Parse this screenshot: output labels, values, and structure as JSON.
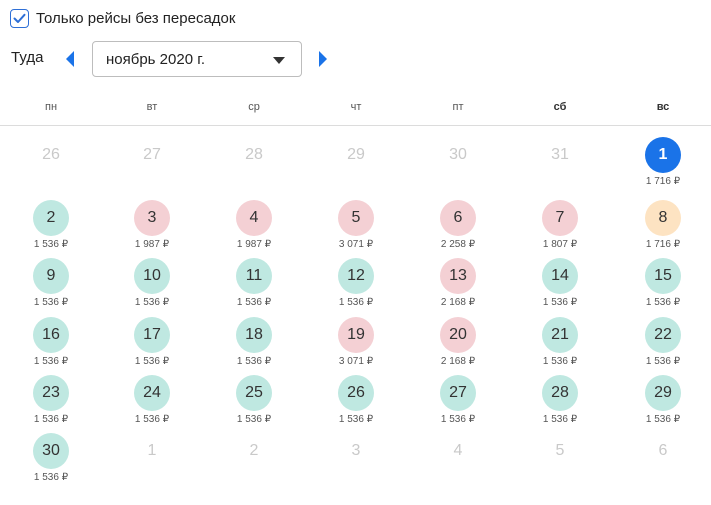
{
  "filter": {
    "label": "Только рейсы без пересадок",
    "checked": true
  },
  "nav": {
    "direction_label": "Туда",
    "month": "ноябрь 2020 г."
  },
  "weekdays": [
    "пн",
    "вт",
    "ср",
    "чт",
    "пт",
    "сб",
    "вс"
  ],
  "colors": {
    "accent": "#1a73e8",
    "cheap": "#bfe8e1",
    "expensive": "#f4d0d4",
    "medium": "#fde3c2"
  },
  "days": [
    {
      "n": "26",
      "p": "",
      "c": "none",
      "o": true
    },
    {
      "n": "27",
      "p": "",
      "c": "none",
      "o": true
    },
    {
      "n": "28",
      "p": "",
      "c": "none",
      "o": true
    },
    {
      "n": "29",
      "p": "",
      "c": "none",
      "o": true
    },
    {
      "n": "30",
      "p": "",
      "c": "none",
      "o": true
    },
    {
      "n": "31",
      "p": "",
      "c": "none",
      "o": true
    },
    {
      "n": "1",
      "p": "1 716 ₽",
      "c": "blue",
      "o": false
    },
    {
      "n": "2",
      "p": "1 536 ₽",
      "c": "green",
      "o": false
    },
    {
      "n": "3",
      "p": "1 987 ₽",
      "c": "red",
      "o": false
    },
    {
      "n": "4",
      "p": "1 987 ₽",
      "c": "red",
      "o": false
    },
    {
      "n": "5",
      "p": "3 071 ₽",
      "c": "red",
      "o": false
    },
    {
      "n": "6",
      "p": "2 258 ₽",
      "c": "red",
      "o": false
    },
    {
      "n": "7",
      "p": "1 807 ₽",
      "c": "red",
      "o": false
    },
    {
      "n": "8",
      "p": "1 716 ₽",
      "c": "orange",
      "o": false
    },
    {
      "n": "9",
      "p": "1 536 ₽",
      "c": "green",
      "o": false
    },
    {
      "n": "10",
      "p": "1 536 ₽",
      "c": "green",
      "o": false
    },
    {
      "n": "11",
      "p": "1 536 ₽",
      "c": "green",
      "o": false
    },
    {
      "n": "12",
      "p": "1 536 ₽",
      "c": "green",
      "o": false
    },
    {
      "n": "13",
      "p": "2 168 ₽",
      "c": "red",
      "o": false
    },
    {
      "n": "14",
      "p": "1 536 ₽",
      "c": "green",
      "o": false
    },
    {
      "n": "15",
      "p": "1 536 ₽",
      "c": "green",
      "o": false
    },
    {
      "n": "16",
      "p": "1 536 ₽",
      "c": "green",
      "o": false
    },
    {
      "n": "17",
      "p": "1 536 ₽",
      "c": "green",
      "o": false
    },
    {
      "n": "18",
      "p": "1 536 ₽",
      "c": "green",
      "o": false
    },
    {
      "n": "19",
      "p": "3 071 ₽",
      "c": "red",
      "o": false
    },
    {
      "n": "20",
      "p": "2 168 ₽",
      "c": "red",
      "o": false
    },
    {
      "n": "21",
      "p": "1 536 ₽",
      "c": "green",
      "o": false
    },
    {
      "n": "22",
      "p": "1 536 ₽",
      "c": "green",
      "o": false
    },
    {
      "n": "23",
      "p": "1 536 ₽",
      "c": "green",
      "o": false
    },
    {
      "n": "24",
      "p": "1 536 ₽",
      "c": "green",
      "o": false
    },
    {
      "n": "25",
      "p": "1 536 ₽",
      "c": "green",
      "o": false
    },
    {
      "n": "26",
      "p": "1 536 ₽",
      "c": "green",
      "o": false
    },
    {
      "n": "27",
      "p": "1 536 ₽",
      "c": "green",
      "o": false
    },
    {
      "n": "28",
      "p": "1 536 ₽",
      "c": "green",
      "o": false
    },
    {
      "n": "29",
      "p": "1 536 ₽",
      "c": "green",
      "o": false
    },
    {
      "n": "30",
      "p": "1 536 ₽",
      "c": "green",
      "o": false
    },
    {
      "n": "1",
      "p": "",
      "c": "none",
      "o": true
    },
    {
      "n": "2",
      "p": "",
      "c": "none",
      "o": true
    },
    {
      "n": "3",
      "p": "",
      "c": "none",
      "o": true
    },
    {
      "n": "4",
      "p": "",
      "c": "none",
      "o": true
    },
    {
      "n": "5",
      "p": "",
      "c": "none",
      "o": true
    },
    {
      "n": "6",
      "p": "",
      "c": "none",
      "o": true
    }
  ]
}
